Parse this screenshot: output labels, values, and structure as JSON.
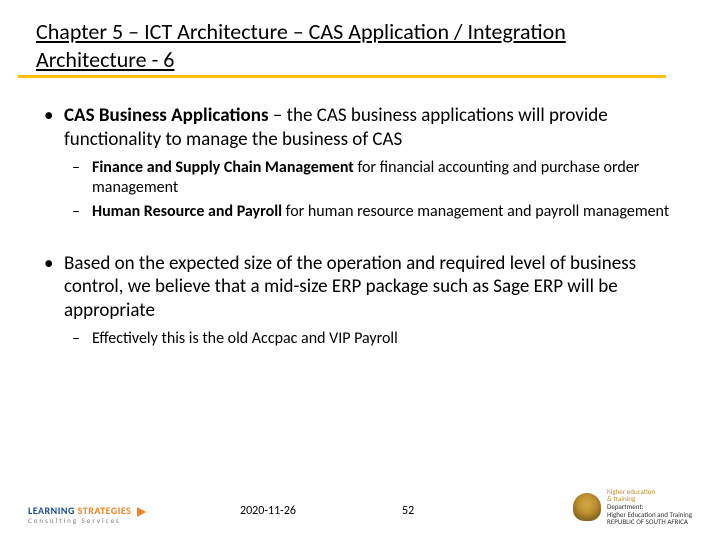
{
  "title": "Chapter 5 – ICT Architecture – CAS Application / Integration Architecture  - 6",
  "bullets": {
    "b1_bold": "CAS Business Applications",
    "b1_rest": " – the CAS business applications will provide functionality to manage the business of CAS",
    "b1a_bold": "Finance and Supply Chain Management",
    "b1a_rest": " for financial accounting and purchase order management",
    "b1b_bold": "Human Resource and Payroll",
    "b1b_rest": " for human resource management and payroll management",
    "b2": "Based on the expected size of the operation and required level of business control, we believe that a mid-size ERP package such as Sage ERP will be appropriate",
    "b2a": "Effectively this is the old Accpac and VIP Payroll"
  },
  "footer": {
    "date": "2020-11-26",
    "page": "52",
    "left_logo_line1a": "LEARNING",
    "left_logo_line1b": "STRATEGIES",
    "left_logo_line2": "Consulting Services",
    "right_dept_1": "higher education",
    "right_dept_2": "& training",
    "right_dept_3": "Department:",
    "right_dept_4": "Higher Education and Training",
    "right_dept_5": "REPUBLIC OF SOUTH AFRICA"
  },
  "colors": {
    "title_underline": "#ffc000",
    "brand_blue": "#1a4b8c",
    "brand_orange": "#f58220"
  }
}
